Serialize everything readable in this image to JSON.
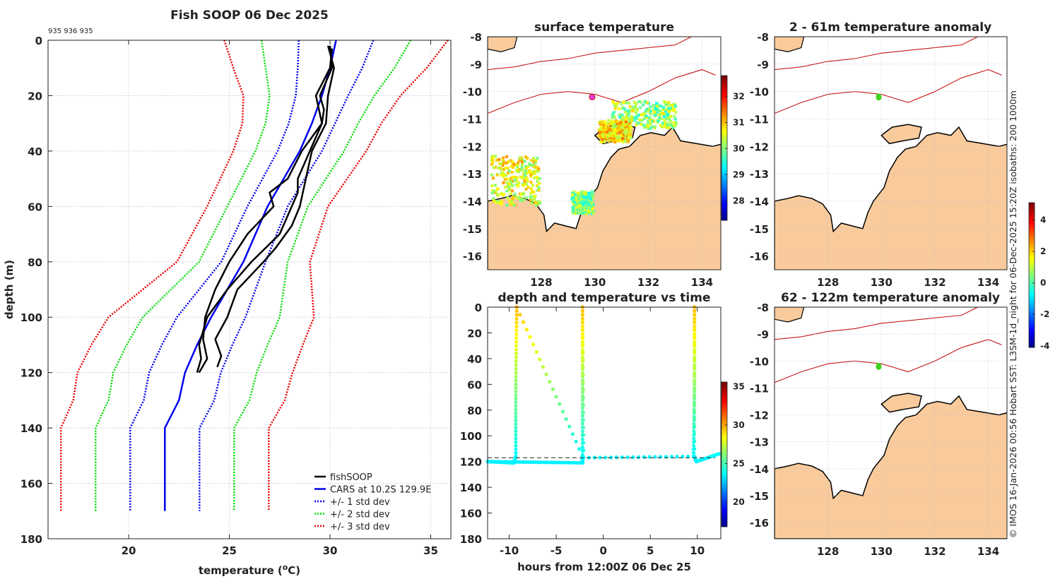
{
  "colors": {
    "land": "#f9cb9c",
    "isobath": "#c00000",
    "coast": "#000000",
    "grid": "#b0b0d0"
  },
  "chart_data": [
    {
      "type": "line",
      "title": "Fish SOOP 06 Dec 2025",
      "ids_label": "935 936 935",
      "xlabel": "temperature (",
      "xlabel_sup": "o",
      "xlabel_tail": "C)",
      "ylabel": "depth (m)",
      "xlim": [
        16,
        36
      ],
      "ylim": [
        0,
        180
      ],
      "y_reversed": true,
      "xticks": [
        20,
        25,
        30,
        35
      ],
      "yticks": [
        0,
        20,
        40,
        60,
        80,
        100,
        120,
        140,
        160,
        180
      ],
      "legend": [
        "fishSOOP",
        "CARS at 10.2S 129.9E",
        "+/- 1 std dev",
        "+/- 2 std dev",
        "+/- 3 std dev"
      ],
      "legend_position": "bottom-right",
      "cars": {
        "depth": [
          0,
          10,
          20,
          30,
          40,
          50,
          60,
          70,
          80,
          90,
          100,
          110,
          120,
          130,
          140,
          170
        ],
        "temp": [
          30.3,
          30.0,
          29.6,
          29.1,
          28.5,
          27.7,
          26.9,
          26.3,
          25.7,
          24.9,
          24.1,
          23.4,
          22.8,
          22.5,
          21.8,
          21.8
        ],
        "std": [
          1.85,
          1.6,
          1.3,
          1.15,
          1.1,
          1.05,
          1.0,
          1.05,
          1.1,
          1.4,
          1.7,
          1.75,
          1.78,
          1.75,
          1.72,
          1.72
        ]
      },
      "fishsoop": [
        {
          "depth": [
            2,
            10,
            20,
            25,
            30,
            40,
            50,
            55,
            60,
            70,
            80,
            90,
            100,
            110,
            115,
            120
          ],
          "temp": [
            30.0,
            30.1,
            29.5,
            29.7,
            29.6,
            29.0,
            28.4,
            28.4,
            28.1,
            27.5,
            26.1,
            24.9,
            23.9,
            23.5,
            23.6,
            23.4
          ]
        },
        {
          "depth": [
            3,
            10,
            20,
            30,
            40,
            50,
            55,
            60,
            70,
            80,
            90,
            100,
            108,
            115,
            120
          ],
          "temp": [
            30.1,
            30.0,
            29.3,
            29.6,
            28.6,
            27.9,
            27.0,
            27.2,
            25.9,
            25.0,
            24.3,
            23.8,
            23.7,
            23.9,
            23.5
          ]
        },
        {
          "depth": [
            2,
            10,
            20,
            30,
            40,
            50,
            60,
            67,
            75,
            80,
            90,
            100,
            108,
            114,
            118
          ],
          "temp": [
            29.9,
            30.2,
            29.9,
            29.8,
            29.1,
            28.8,
            28.5,
            28.1,
            27.3,
            26.7,
            25.4,
            24.9,
            24.3,
            24.6,
            24.4
          ]
        }
      ]
    },
    {
      "type": "scatter",
      "title": "depth and temperature vs time",
      "xlabel": "hours from 12:00Z 06 Dec 25",
      "xlim": [
        -12.3,
        12.5
      ],
      "ylim": [
        0,
        180
      ],
      "y_reversed": true,
      "xticks": [
        -10,
        -5,
        0,
        5,
        10
      ],
      "yticks": [
        0,
        20,
        40,
        60,
        80,
        100,
        120,
        140,
        160,
        180
      ],
      "colorbar": {
        "range": [
          16.8,
          35.6
        ],
        "ticks": [
          20,
          25,
          30,
          35
        ]
      },
      "reference_depth": 117,
      "track": {
        "time": [
          -12.3,
          -9.5,
          -9.3,
          -9.3,
          -9.2,
          -2.2,
          -2.2,
          -2.2,
          -2.2,
          -2.1,
          9.6,
          9.7,
          9.7,
          9.7,
          9.9,
          12.3
        ],
        "depth": [
          120,
          121,
          116,
          60,
          0,
          116,
          121,
          60,
          0,
          117,
          116,
          60,
          0,
          116,
          120,
          114
        ],
        "temp": [
          23.6,
          23.6,
          23.8,
          26.5,
          29.8,
          23.8,
          23.6,
          26.5,
          29.8,
          23.8,
          23.7,
          26.5,
          29.8,
          23.8,
          23.6,
          23.9
        ]
      },
      "lower_track": {
        "time": [
          -12.3,
          -2.2
        ],
        "depth": [
          120,
          121
        ]
      }
    }
  ],
  "maps": {
    "lon_ticks": [
      "128",
      "130",
      "132",
      "134"
    ],
    "lat_ticks": [
      "-8",
      "-9",
      "-10",
      "-11",
      "-12",
      "-13",
      "-14",
      "-15",
      "-16"
    ],
    "sst": {
      "title": "surface temperature",
      "colorbar_ticks": [
        "28",
        "29",
        "30",
        "31",
        "32"
      ],
      "colorbar_range": [
        27.25,
        32.8
      ]
    },
    "anom1": {
      "title": "2 - 61m temperature anomaly"
    },
    "anom2": {
      "title": "62 - 122m temperature anomaly"
    },
    "anom_colorbar": {
      "ticks": [
        "4",
        "2",
        "0",
        "-2",
        "-4"
      ],
      "range": [
        -4.1,
        5.1
      ]
    },
    "station": {
      "lon": 129.9,
      "lat": -10.2
    }
  },
  "credit": "© IMOS 16-Jan-2026 00:56 Hobart SST: L3SM-1d_night for 06-Dec-2025 15:20Z isobaths: 200  1000m"
}
